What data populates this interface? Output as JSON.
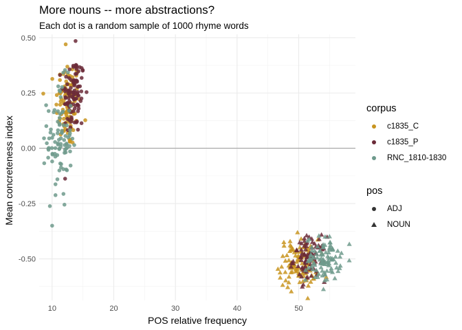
{
  "chart_data": {
    "type": "scatter",
    "title": "More nouns -- more abstractions?",
    "subtitle": "Each dot is a random sample of 1000 rhyme words",
    "xlabel": "POS relative frequency",
    "ylabel": "Mean concreteness index",
    "xlim": [
      7.9,
      59.2
    ],
    "ylim": [
      -0.688,
      0.515
    ],
    "x_ticks": [
      "10",
      "20",
      "30",
      "40",
      "50"
    ],
    "y_ticks": [
      "-0.50",
      "-0.25",
      "0.00",
      "0.25",
      "0.50"
    ],
    "hline": 0,
    "grid": true,
    "legend_position": "right",
    "legend": {
      "color_title": "corpus",
      "shape_title": "pos",
      "corpora": [
        {
          "name": "c1835_C",
          "color": "#C8941F"
        },
        {
          "name": "c1835_P",
          "color": "#6B2A38"
        },
        {
          "name": "RNC_1810-1830",
          "color": "#6E9A8C"
        }
      ],
      "pos": [
        {
          "name": "ADJ",
          "shape": "circle"
        },
        {
          "name": "NOUN",
          "shape": "triangle"
        }
      ]
    },
    "clusters": [
      {
        "corpus": "c1835_C",
        "pos": "ADJ",
        "n": 110,
        "x_mean": 12.6,
        "x_sd": 1.0,
        "y_mean": 0.2,
        "y_sd": 0.1
      },
      {
        "corpus": "c1835_P",
        "pos": "ADJ",
        "n": 100,
        "x_mean": 13.5,
        "x_sd": 0.9,
        "y_mean": 0.24,
        "y_sd": 0.09
      },
      {
        "corpus": "RNC_1810-1830",
        "pos": "ADJ",
        "n": 90,
        "x_mean": 11.2,
        "x_sd": 1.0,
        "y_mean": 0.04,
        "y_sd": 0.13
      },
      {
        "corpus": "c1835_C",
        "pos": "NOUN",
        "n": 110,
        "x_mean": 50.0,
        "x_sd": 1.6,
        "y_mean": -0.52,
        "y_sd": 0.055
      },
      {
        "corpus": "c1835_P",
        "pos": "NOUN",
        "n": 90,
        "x_mean": 51.8,
        "x_sd": 1.3,
        "y_mean": -0.5,
        "y_sd": 0.05
      },
      {
        "corpus": "RNC_1810-1830",
        "pos": "NOUN",
        "n": 100,
        "x_mean": 54.0,
        "x_sd": 1.4,
        "y_mean": -0.5,
        "y_sd": 0.05
      }
    ],
    "outliers": [
      {
        "corpus": "RNC_1810-1830",
        "pos": "ADJ",
        "x": 10.0,
        "y": -0.35
      },
      {
        "corpus": "RNC_1810-1830",
        "pos": "ADJ",
        "x": 12.0,
        "y": -0.255
      },
      {
        "corpus": "c1835_C",
        "pos": "ADJ",
        "x": 12.2,
        "y": 0.47
      },
      {
        "corpus": "c1835_P",
        "pos": "ADJ",
        "x": 13.8,
        "y": 0.485
      }
    ]
  }
}
